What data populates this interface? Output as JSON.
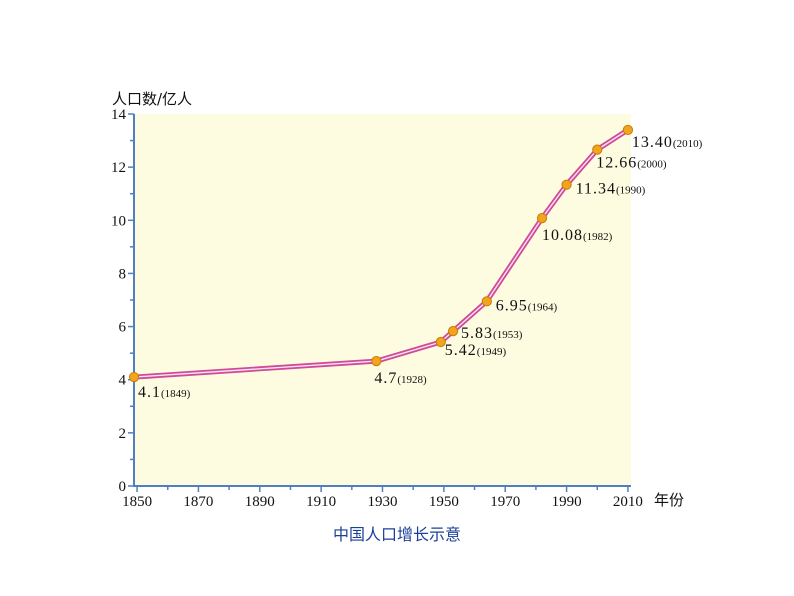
{
  "chart_data": {
    "type": "line",
    "title": "",
    "caption": "中国人口增长示意",
    "xlabel": "年份",
    "ylabel": "人口数/亿人",
    "xlim": [
      1849,
      2011
    ],
    "ylim": [
      0,
      14
    ],
    "x_ticks": [
      "1850",
      "1870",
      "1890",
      "1910",
      "1930",
      "1950",
      "1970",
      "1990",
      "2010"
    ],
    "y_ticks": [
      "0",
      "2",
      "4",
      "6",
      "8",
      "10",
      "12",
      "14"
    ],
    "grid": false,
    "colors": {
      "plot_bg": "#fdfbe0",
      "axis": "#4f7fc1",
      "line": "#d04a9a",
      "point": "#f2a41c",
      "caption": "#1b3f9a"
    },
    "series": [
      {
        "x": [
          1849,
          1928,
          1949,
          1953,
          1964,
          1982,
          1990,
          2000,
          2010
        ],
        "values": [
          4.1,
          4.7,
          5.42,
          5.83,
          6.95,
          10.08,
          11.34,
          12.66,
          13.4
        ],
        "labels": [
          {
            "value": "4.1",
            "year": "(1849)"
          },
          {
            "value": "4.7",
            "year": "(1928)"
          },
          {
            "value": "5.42",
            "year": "(1949)"
          },
          {
            "value": "5.83",
            "year": "(1953)"
          },
          {
            "value": "6.95",
            "year": "(1964)"
          },
          {
            "value": "10.08",
            "year": "(1982)"
          },
          {
            "value": "11.34",
            "year": "(1990)"
          },
          {
            "value": "12.66",
            "year": "(2000)"
          },
          {
            "value": "13.40",
            "year": "(2010)"
          }
        ]
      }
    ]
  }
}
